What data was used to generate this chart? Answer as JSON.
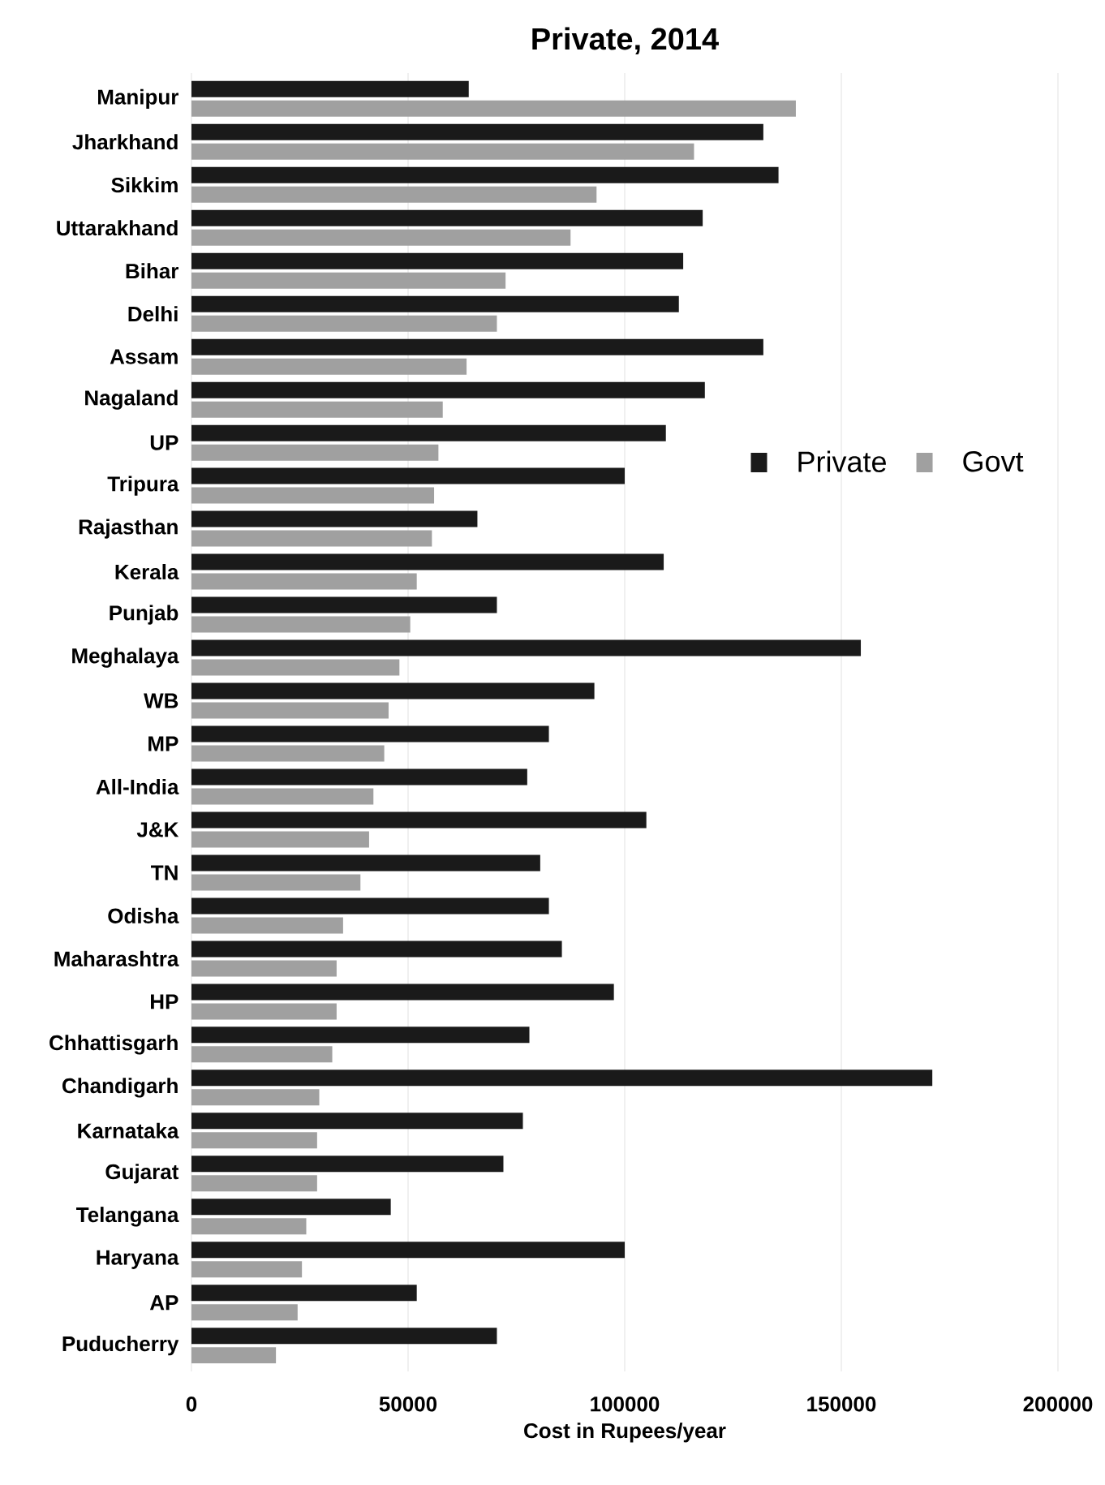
{
  "chart_data": {
    "type": "bar",
    "orientation": "horizontal",
    "title": "Private, 2014",
    "xlabel": "Cost in Rupees/year",
    "categories": [
      "Manipur",
      "Jharkhand",
      "Sikkim",
      "Uttarakhand",
      "Bihar",
      "Delhi",
      "Assam",
      "Nagaland",
      "UP",
      "Tripura",
      "Rajasthan",
      "Kerala",
      "Punjab",
      "Meghalaya",
      "WB",
      "MP",
      "All-India",
      "J&K",
      "TN",
      "Odisha",
      "Maharashtra",
      "HP",
      "Chhattisgarh",
      "Chandigarh",
      "Karnataka",
      "Gujarat",
      "Telangana",
      "Haryana",
      "AP",
      "Puducherry"
    ],
    "series": [
      {
        "name": "Private",
        "color": "#1a1a1a",
        "values": [
          64000,
          132000,
          135500,
          118000,
          113500,
          112500,
          132000,
          118500,
          109500,
          100000,
          66000,
          109000,
          70500,
          154500,
          93000,
          82500,
          77500,
          105000,
          80500,
          82500,
          85500,
          97500,
          78000,
          171000,
          76500,
          72000,
          46000,
          100000,
          52000,
          70500
        ]
      },
      {
        "name": "Govt",
        "color": "#a0a0a0",
        "values": [
          139500,
          116000,
          93500,
          87500,
          72500,
          70500,
          63500,
          58000,
          57000,
          56000,
          55500,
          52000,
          50500,
          48000,
          45500,
          44500,
          42000,
          41000,
          39000,
          35000,
          33500,
          33500,
          32500,
          29500,
          29000,
          29000,
          26500,
          25500,
          24500,
          19500
        ]
      }
    ],
    "xlim": [
      0,
      200000
    ],
    "xticks": [
      0,
      50000,
      100000,
      150000,
      200000
    ],
    "grid": "x",
    "legend": "right"
  }
}
